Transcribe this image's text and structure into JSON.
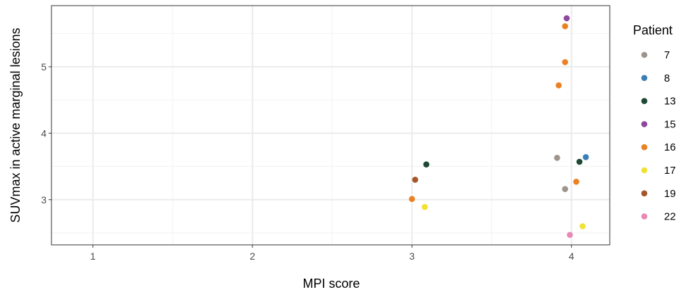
{
  "chart_data": {
    "type": "scatter",
    "xlabel": "MPI score",
    "ylabel": "SUVmax in active marginal lesions",
    "xlim": [
      0.74,
      4.24
    ],
    "ylim": [
      2.32,
      5.92
    ],
    "x_ticks": [
      1,
      2,
      3,
      4
    ],
    "y_ticks": [
      3,
      4,
      5
    ],
    "x_minor_grid": [
      1.5,
      2.5,
      3.5
    ],
    "y_minor_grid": [
      2.5,
      3.5,
      4.5,
      5.5
    ],
    "grid": true,
    "legend_title": "Patient",
    "legend_position": "right",
    "series": [
      {
        "name": "7",
        "color": "#9d958b",
        "points": [
          {
            "x": 3.91,
            "y": 3.63
          },
          {
            "x": 3.96,
            "y": 3.16
          }
        ]
      },
      {
        "name": "8",
        "color": "#3b7fb6",
        "points": [
          {
            "x": 4.09,
            "y": 3.64
          }
        ]
      },
      {
        "name": "13",
        "color": "#1e4a35",
        "points": [
          {
            "x": 3.09,
            "y": 3.53
          },
          {
            "x": 4.05,
            "y": 3.57
          }
        ]
      },
      {
        "name": "15",
        "color": "#8b4a9a",
        "points": [
          {
            "x": 3.97,
            "y": 5.73
          }
        ]
      },
      {
        "name": "16",
        "color": "#ea8224",
        "points": [
          {
            "x": 3.96,
            "y": 5.61
          },
          {
            "x": 3.96,
            "y": 5.07
          },
          {
            "x": 3.92,
            "y": 4.72
          },
          {
            "x": 3.0,
            "y": 3.01
          },
          {
            "x": 4.03,
            "y": 3.27
          }
        ]
      },
      {
        "name": "17",
        "color": "#f1e133",
        "points": [
          {
            "x": 3.08,
            "y": 2.89
          },
          {
            "x": 4.07,
            "y": 2.6
          }
        ]
      },
      {
        "name": "19",
        "color": "#a5552a",
        "points": [
          {
            "x": 3.02,
            "y": 3.3
          }
        ]
      },
      {
        "name": "22",
        "color": "#e88ab5",
        "points": [
          {
            "x": 3.99,
            "y": 2.47
          }
        ]
      }
    ]
  }
}
